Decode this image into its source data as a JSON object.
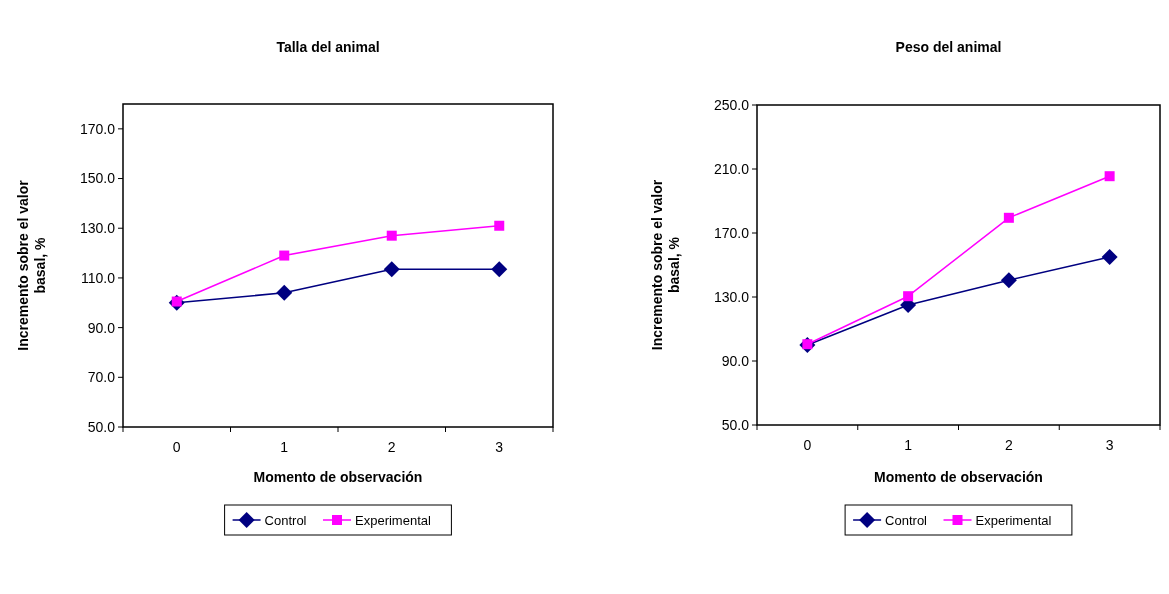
{
  "chart_data": [
    {
      "type": "line",
      "title": "Talla del animal",
      "xlabel": "Momento de observación",
      "ylabel": "Incremento sobre el valor basal, %",
      "categories": [
        "0",
        "1",
        "2",
        "3"
      ],
      "ylim": [
        50,
        180
      ],
      "yticks": [
        {
          "value": 50,
          "label": "50.0"
        },
        {
          "value": 70,
          "label": "70.0"
        },
        {
          "value": 90,
          "label": "90.0"
        },
        {
          "value": 110,
          "label": "110.0"
        },
        {
          "value": 130,
          "label": "130.0"
        },
        {
          "value": 150,
          "label": "150.0"
        },
        {
          "value": 170,
          "label": "170.0"
        }
      ],
      "legend": "bottom",
      "series": [
        {
          "name": "Control",
          "color": "#000080",
          "marker": "diamond",
          "values": [
            100,
            104,
            113.5,
            113.5
          ]
        },
        {
          "name": "Experimental",
          "color": "#ff00ff",
          "marker": "square",
          "values": [
            100.5,
            119,
            127,
            131
          ]
        }
      ]
    },
    {
      "type": "line",
      "title": "Peso del animal",
      "xlabel": "Momento de observación",
      "ylabel": "Incremento sobre el valor basal, %",
      "categories": [
        "0",
        "1",
        "2",
        "3"
      ],
      "ylim": [
        50,
        250
      ],
      "yticks": [
        {
          "value": 50,
          "label": "50.0"
        },
        {
          "value": 90,
          "label": "90.0"
        },
        {
          "value": 130,
          "label": "130.0"
        },
        {
          "value": 170,
          "label": "170.0"
        },
        {
          "value": 210,
          "label": "210.0"
        },
        {
          "value": 250,
          "label": "250.0"
        }
      ],
      "legend": "bottom",
      "series": [
        {
          "name": "Control",
          "color": "#000080",
          "marker": "diamond",
          "values": [
            100,
            125,
            140.5,
            155
          ]
        },
        {
          "name": "Experimental",
          "color": "#ff00ff",
          "marker": "square",
          "values": [
            100.5,
            130.5,
            179.5,
            205.5
          ]
        }
      ]
    }
  ]
}
